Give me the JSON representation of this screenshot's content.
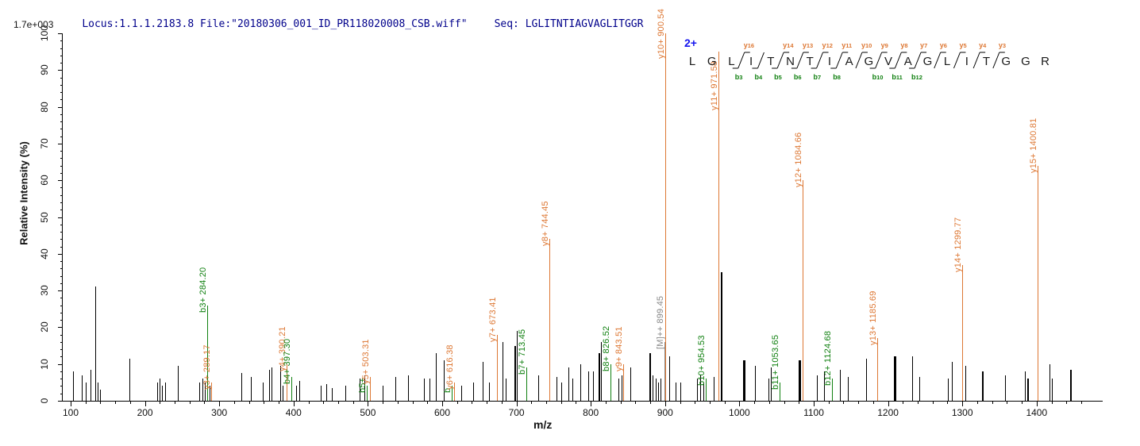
{
  "header": {
    "locus_file": "Locus:1.1.1.2183.8 File:\"20180306_001_ID_PR118020008_CSB.wiff\"",
    "seq": "Seq: LGLITNTIAGVAGLITGGR"
  },
  "chart_data": {
    "type": "bar",
    "subtype": "ms2-fragmentation-stick-spectrum",
    "title": "",
    "xlabel": "m/z",
    "ylabel": "Relative  Intensity (%)",
    "base_peak_intensity": "1.7e+003",
    "precursor_charge": "2+",
    "xlim": [
      85,
      1490
    ],
    "ylim": [
      0,
      100
    ],
    "x_major_tick_step": 100,
    "x_minor_tick_step": 20,
    "x_major_tick_min": 100,
    "x_major_tick_max": 1400,
    "y_major_tick_step": 10,
    "y_minor_tick_step": 2,
    "grid": false,
    "colors": {
      "y_ion": "#dd7733",
      "b_ion": "#108010",
      "precursor_label": "#888888",
      "unlabeled_peak": "#000000",
      "charge": "#1414ee",
      "header_text": "#00008b"
    },
    "sequence": {
      "residues": [
        "L",
        "G",
        "L",
        "I",
        "T",
        "N",
        "T",
        "I",
        "A",
        "G",
        "V",
        "A",
        "G",
        "L",
        "I",
        "T",
        "G",
        "G",
        "R"
      ],
      "y_ions": [
        {
          "label": "y16",
          "pos": 3
        },
        {
          "label": "y14",
          "pos": 5
        },
        {
          "label": "y13",
          "pos": 6
        },
        {
          "label": "y12",
          "pos": 7
        },
        {
          "label": "y11",
          "pos": 8
        },
        {
          "label": "y10",
          "pos": 9
        },
        {
          "label": "y9",
          "pos": 10
        },
        {
          "label": "y8",
          "pos": 11
        },
        {
          "label": "y7",
          "pos": 12
        },
        {
          "label": "y6",
          "pos": 13
        },
        {
          "label": "y5",
          "pos": 14
        },
        {
          "label": "y4",
          "pos": 15
        },
        {
          "label": "y3",
          "pos": 16
        }
      ],
      "b_ions": [
        {
          "label": "b3",
          "pos": 3
        },
        {
          "label": "b4",
          "pos": 4
        },
        {
          "label": "b5",
          "pos": 5
        },
        {
          "label": "b6",
          "pos": 6
        },
        {
          "label": "b7",
          "pos": 7
        },
        {
          "label": "b8",
          "pos": 8
        },
        {
          "label": "b10",
          "pos": 10
        },
        {
          "label": "b11",
          "pos": 11
        },
        {
          "label": "b12",
          "pos": 12
        }
      ]
    },
    "labeled_peaks": [
      {
        "mz": 284.2,
        "h": 26,
        "t": "b",
        "label": "b3+ 284.20"
      },
      {
        "mz": 289.17,
        "h": 5,
        "t": "y",
        "label": "y3+ 289.17"
      },
      {
        "mz": 390.21,
        "h": 10,
        "t": "y",
        "label": "y4+ 390.21"
      },
      {
        "mz": 397.3,
        "h": 6.5,
        "t": "b",
        "label": "b4+ 397.30"
      },
      {
        "mz": 498.3,
        "h": 4,
        "t": "b",
        "label": "b5+"
      },
      {
        "mz": 503.31,
        "h": 6.5,
        "t": "y",
        "label": "y5+ 503.31"
      },
      {
        "mz": 612.4,
        "h": 4,
        "t": "b",
        "label": "b"
      },
      {
        "mz": 616.38,
        "h": 5,
        "t": "y",
        "label": "y6+ 616.38"
      },
      {
        "mz": 673.41,
        "h": 18,
        "t": "y",
        "label": "y7+ 673.41"
      },
      {
        "mz": 713.45,
        "h": 9,
        "t": "b",
        "label": "b7+ 713.45"
      },
      {
        "mz": 744.45,
        "h": 44,
        "t": "y",
        "label": "y8+ 744.45"
      },
      {
        "mz": 826.52,
        "h": 10,
        "t": "b",
        "label": "b8+ 826.52"
      },
      {
        "mz": 843.51,
        "h": 10,
        "t": "y",
        "label": "y9+ 843.51"
      },
      {
        "mz": 899.45,
        "h": 16,
        "t": "m",
        "label": "[M]++ 899.45"
      },
      {
        "mz": 900.54,
        "h": 100,
        "t": "y",
        "label": "y10+ 900.54",
        "ldy": 23
      },
      {
        "mz": 954.53,
        "h": 6,
        "t": "b",
        "label": "b10+ 954.53"
      },
      {
        "mz": 971.58,
        "h": 95,
        "t": "y",
        "label": "y11+ 971.58",
        "ldy": 65
      },
      {
        "mz": 1053.65,
        "h": 5,
        "t": "b",
        "label": "b11+ 1053.65"
      },
      {
        "mz": 1084.66,
        "h": 60,
        "t": "y",
        "label": "y12+ 1084.66"
      },
      {
        "mz": 1124.68,
        "h": 6,
        "t": "b",
        "label": "b12+ 1124.68"
      },
      {
        "mz": 1185.69,
        "h": 17,
        "t": "y",
        "label": "y13+ 1185.69"
      },
      {
        "mz": 1299.77,
        "h": 37,
        "t": "y",
        "label": "y14+ 1299.77"
      },
      {
        "mz": 1400.81,
        "h": 64,
        "t": "y",
        "label": "y15+ 1400.81"
      }
    ],
    "peaks": [
      [
        103,
        8
      ],
      [
        115,
        7
      ],
      [
        120,
        5
      ],
      [
        127,
        8.5
      ],
      [
        133,
        31
      ],
      [
        136,
        5
      ],
      [
        139,
        3
      ],
      [
        179,
        11.5
      ],
      [
        216,
        5
      ],
      [
        220,
        6
      ],
      [
        223,
        4
      ],
      [
        227,
        5
      ],
      [
        244,
        9.5
      ],
      [
        273,
        5
      ],
      [
        277,
        6
      ],
      [
        281,
        5
      ],
      [
        287,
        4
      ],
      [
        330,
        7.5
      ],
      [
        343,
        6.5
      ],
      [
        359,
        5
      ],
      [
        367,
        8.5
      ],
      [
        370,
        9
      ],
      [
        382,
        9.5
      ],
      [
        385,
        4
      ],
      [
        403,
        4
      ],
      [
        408,
        5.5
      ],
      [
        437,
        4
      ],
      [
        444,
        4.5
      ],
      [
        452,
        3.5
      ],
      [
        470,
        4
      ],
      [
        489,
        6
      ],
      [
        495,
        7
      ],
      [
        520,
        4
      ],
      [
        537,
        6.5
      ],
      [
        554,
        7
      ],
      [
        575,
        6
      ],
      [
        583,
        6
      ],
      [
        591,
        13
      ],
      [
        602,
        11
      ],
      [
        626,
        4
      ],
      [
        642,
        5
      ],
      [
        654,
        10.5
      ],
      [
        663,
        5
      ],
      [
        681,
        16
      ],
      [
        685,
        6
      ],
      [
        697,
        15,
        2
      ],
      [
        700,
        19
      ],
      [
        729,
        7
      ],
      [
        754,
        6.5
      ],
      [
        760,
        5
      ],
      [
        770,
        9
      ],
      [
        775,
        6
      ],
      [
        786,
        10
      ],
      [
        797,
        8
      ],
      [
        803,
        8
      ],
      [
        810,
        13,
        2
      ],
      [
        814,
        16
      ],
      [
        837,
        6
      ],
      [
        841,
        7
      ],
      [
        853,
        9
      ],
      [
        879,
        13,
        2
      ],
      [
        883,
        7
      ],
      [
        887,
        6
      ],
      [
        891,
        5
      ],
      [
        894,
        6
      ],
      [
        906,
        12
      ],
      [
        914,
        5
      ],
      [
        920,
        5
      ],
      [
        943,
        6
      ],
      [
        947,
        7
      ],
      [
        952,
        5
      ],
      [
        965,
        6.5
      ],
      [
        975,
        35,
        2
      ],
      [
        1005,
        11,
        3
      ],
      [
        1021,
        9.5
      ],
      [
        1039,
        6
      ],
      [
        1042,
        9
      ],
      [
        1080,
        11,
        3
      ],
      [
        1104,
        7
      ],
      [
        1114,
        8
      ],
      [
        1135,
        8.5
      ],
      [
        1146,
        6.5
      ],
      [
        1170,
        11.5
      ],
      [
        1208,
        12,
        3
      ],
      [
        1233,
        12
      ],
      [
        1242,
        6.5
      ],
      [
        1281,
        6
      ],
      [
        1286,
        10.5
      ],
      [
        1304,
        9.5
      ],
      [
        1327,
        8,
        2
      ],
      [
        1357,
        7
      ],
      [
        1384,
        8
      ],
      [
        1387,
        6,
        2
      ],
      [
        1417,
        10
      ],
      [
        1420,
        6
      ],
      [
        1445,
        8.5,
        2
      ]
    ]
  }
}
